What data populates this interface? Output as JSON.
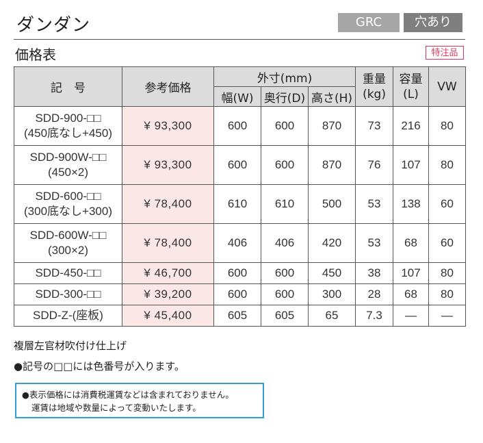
{
  "header": {
    "title": "ダンダン",
    "tag_material": "GRC",
    "tag_hole": "穴あり"
  },
  "section": {
    "title": "価格表",
    "special_order": "特注品"
  },
  "table": {
    "headers": {
      "code": "記　号",
      "price": "参考価格",
      "outer_size": "外寸(mm)",
      "width": "幅(W)",
      "depth": "奥行(D)",
      "height": "高さ(H)",
      "weight": "重量\n(kg)",
      "weight_line1": "重量",
      "weight_line2": "(kg)",
      "capacity_line1": "容量",
      "capacity_line2": "(L)",
      "vw": "VW"
    },
    "rows": [
      {
        "code1": "SDD-900-□□",
        "code2": "(450底なし+450)",
        "price": "¥ 93,300",
        "w": "600",
        "d": "600",
        "h": "870",
        "kg": "73",
        "l": "216",
        "vw": "80"
      },
      {
        "code1": "SDD-900W-□□",
        "code2": "(450×2)",
        "price": "¥ 93,300",
        "w": "600",
        "d": "600",
        "h": "870",
        "kg": "76",
        "l": "107",
        "vw": "80"
      },
      {
        "code1": "SDD-600-□□",
        "code2": "(300底なし+300)",
        "price": "¥ 78,400",
        "w": "610",
        "d": "610",
        "h": "500",
        "kg": "53",
        "l": "138",
        "vw": "60"
      },
      {
        "code1": "SDD-600W-□□",
        "code2": "(300×2)",
        "price": "¥ 78,400",
        "w": "406",
        "d": "406",
        "h": "420",
        "kg": "53",
        "l": "68",
        "vw": "60"
      },
      {
        "code1": "SDD-450-□□",
        "price": "¥ 46,700",
        "w": "600",
        "d": "600",
        "h": "450",
        "kg": "38",
        "l": "107",
        "vw": "80"
      },
      {
        "code1": "SDD-300-□□",
        "price": "¥ 39,200",
        "w": "600",
        "d": "600",
        "h": "300",
        "kg": "28",
        "l": "68",
        "vw": "80"
      },
      {
        "code1": "SDD-Z-(座板)",
        "price": "¥ 45,400",
        "w": "605",
        "d": "605",
        "h": "65",
        "kg": "7.3",
        "l": "—",
        "vw": "—"
      }
    ]
  },
  "notes": {
    "finish": "複層左官材吹付け仕上げ",
    "color_code": "●記号の□□には色番号が入ります。"
  },
  "notice": {
    "line1": "●表示価格には消費税運賃などは含まれておりません。",
    "line2": "運賃は地域や数量によって変動いたします。"
  }
}
